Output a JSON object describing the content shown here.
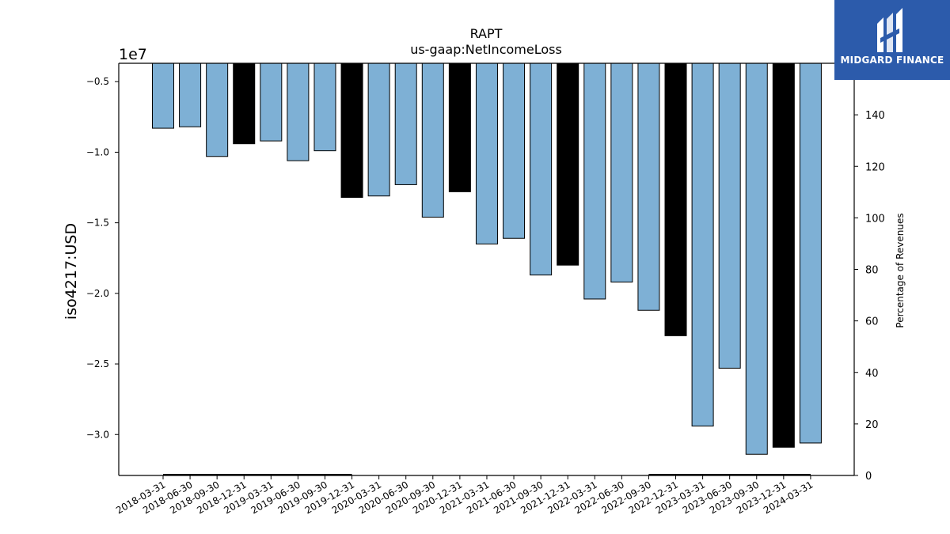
{
  "brand": {
    "name": "MIDGARD FINANCE",
    "color": "#2c5bab"
  },
  "chart_data": {
    "type": "bar",
    "title": "RAPT",
    "subtitle": "us-gaap:NetIncomeLoss",
    "ylabel": "iso4217:USD",
    "y_multiplier_label": "1e7",
    "y2label": "Percentage of Revenues",
    "ylim": [
      -3.29,
      -0.37
    ],
    "yticks": [
      -0.5,
      -1.0,
      -1.5,
      -2.0,
      -2.5,
      -3.0
    ],
    "ytick_labels": [
      "−0.5",
      "−1.0",
      "−1.5",
      "−2.0",
      "−2.5",
      "−3.0"
    ],
    "y2lim": [
      0,
      160
    ],
    "y2ticks": [
      0,
      20,
      40,
      60,
      80,
      100,
      120,
      140
    ],
    "categories": [
      "2018-03-31",
      "2018-06-30",
      "2018-09-30",
      "2018-12-31",
      "2019-03-31",
      "2019-06-30",
      "2019-09-30",
      "2019-12-31",
      "2020-03-31",
      "2020-06-30",
      "2020-09-30",
      "2020-12-31",
      "2021-03-31",
      "2021-06-30",
      "2021-09-30",
      "2021-12-31",
      "2022-03-31",
      "2022-06-30",
      "2022-09-30",
      "2022-12-31",
      "2023-03-31",
      "2023-06-30",
      "2023-09-30",
      "2023-12-31",
      "2024-03-31"
    ],
    "values": [
      -0.83,
      -0.82,
      -1.03,
      -0.94,
      -0.92,
      -1.06,
      -0.99,
      -1.32,
      -1.31,
      -1.23,
      -1.46,
      -1.28,
      -1.65,
      -1.61,
      -1.87,
      -1.8,
      -2.04,
      -1.92,
      -2.12,
      -2.3,
      -2.94,
      -2.53,
      -3.14,
      -3.09,
      -3.06
    ],
    "annual": [
      false,
      false,
      false,
      true,
      false,
      false,
      false,
      true,
      false,
      false,
      false,
      true,
      false,
      false,
      false,
      true,
      false,
      false,
      false,
      true,
      false,
      false,
      false,
      true,
      false
    ],
    "colors": {
      "quarterly": "#7eb0d5",
      "annual": "#000000"
    }
  }
}
